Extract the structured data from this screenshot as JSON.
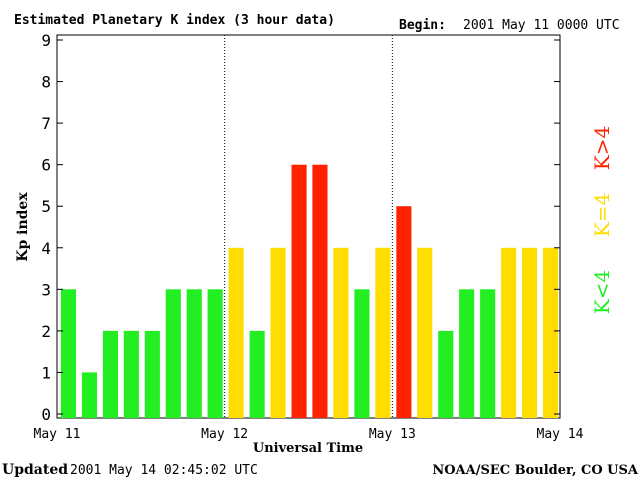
{
  "chart_data": {
    "type": "bar",
    "title": "Estimated Planetary K index (3 hour data)",
    "begin_label": "Begin:",
    "begin_value": "2001 May 11 0000 UTC",
    "xlabel": "Universal Time",
    "ylabel": "Kp index",
    "ylim": [
      0,
      9
    ],
    "yticks": [
      "0",
      "1",
      "2",
      "3",
      "4",
      "5",
      "6",
      "7",
      "8",
      "9"
    ],
    "day_labels": [
      "May 11",
      "May 12",
      "May 13",
      "May 14"
    ],
    "values": [
      3,
      1,
      2,
      2,
      2,
      3,
      3,
      3,
      4,
      2,
      4,
      6,
      6,
      4,
      3,
      4,
      5,
      4,
      2,
      3,
      3,
      4,
      4,
      4
    ],
    "legend": [
      {
        "label": "K<4",
        "color": "#22ee22"
      },
      {
        "label": "K=4",
        "color": "#ffdd00"
      },
      {
        "label": "K>4",
        "color": "#ff2200"
      }
    ],
    "grid": false,
    "updated_label": "Updated",
    "updated_value": "2001 May 14 02:45:02 UTC",
    "source": "NOAA/SEC Boulder, CO USA"
  }
}
